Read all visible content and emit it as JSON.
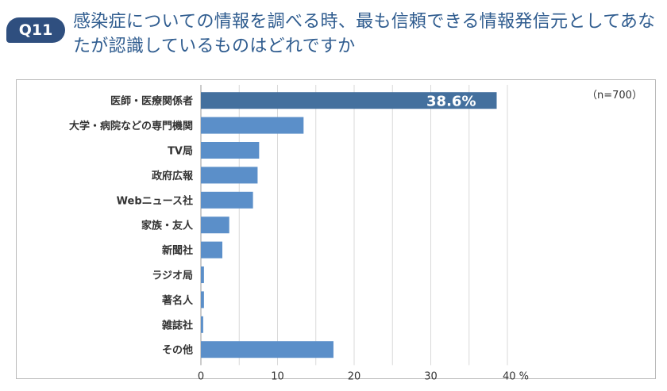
{
  "question": {
    "badge": "Q11",
    "title": "感染症についての情報を調べる時、最も信頼できる情報発信元としてあなたが認識しているものはどれですか"
  },
  "chart_data": {
    "type": "bar",
    "orientation": "horizontal",
    "sample_size_label": "（n=700）",
    "categories": [
      "医師・医療関係者",
      "大学・病院などの専門機関",
      "TV局",
      "政府広報",
      "Webニュース社",
      "家族・友人",
      "新聞社",
      "ラジオ局",
      "著名人",
      "雑誌社",
      "その他"
    ],
    "values": [
      38.6,
      13.4,
      7.6,
      7.4,
      6.8,
      3.7,
      2.8,
      0.4,
      0.4,
      0.3,
      17.3
    ],
    "highlight_index": 0,
    "highlight_label": "38.6%",
    "x_ticks": [
      "0",
      "10",
      "20",
      "30",
      "40 %"
    ],
    "xlim": [
      0,
      40
    ],
    "grid": true,
    "colors": {
      "highlight": "#44709e",
      "bar": "#5b8fc9",
      "grid": "#d9d9d9"
    }
  }
}
